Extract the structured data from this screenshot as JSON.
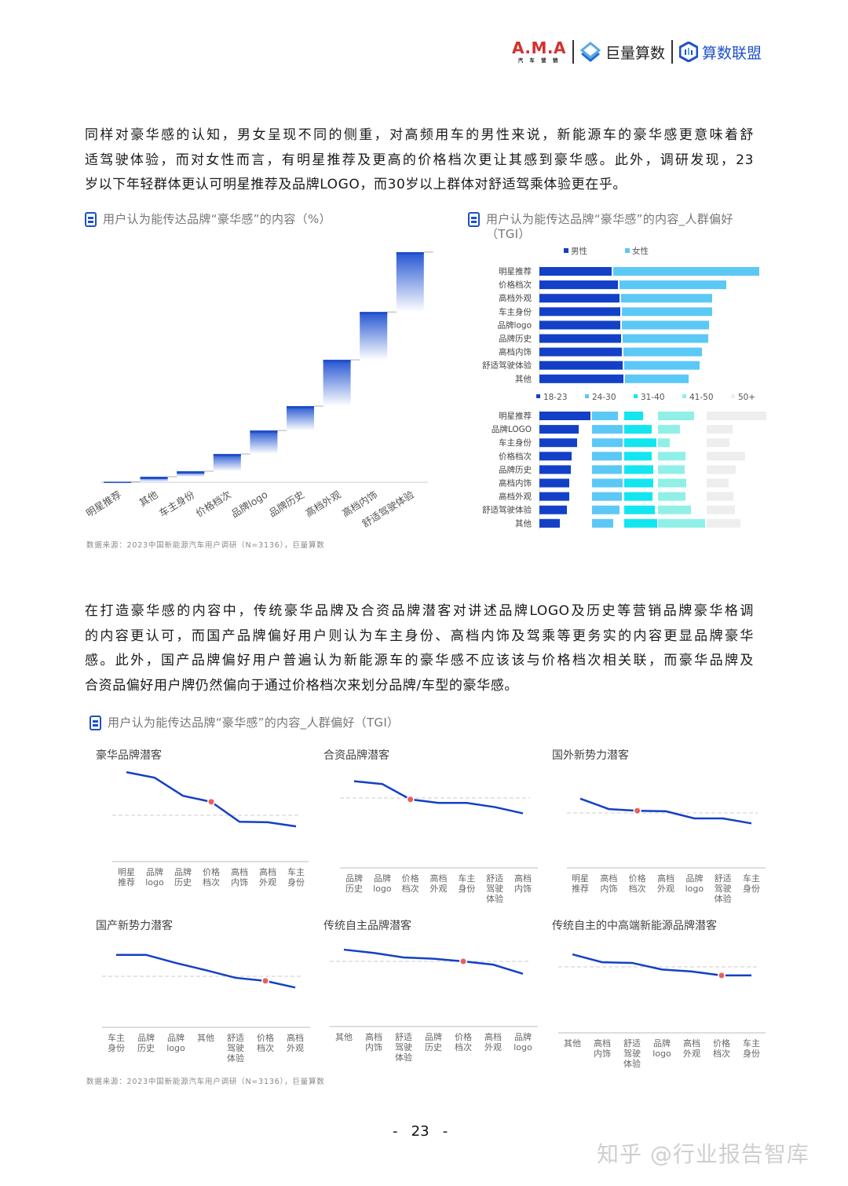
{
  "header": {
    "ama_logo": "A.M.A",
    "ama_sub": "汽 车 营 销",
    "juliang_logo": "巨量算数",
    "suanshu_logo": "算数联盟"
  },
  "paragraph1": {
    "lines": [
      "同样对豪华感的认知，男女呈现不同的侧重，对高频用车的男性来说，新能源车的豪华感更意味着舒",
      "适驾驶体验，而对女性而言，有明星推荐及更高的价格档次更让其感到豪华感。此外，调研发现，23",
      "岁以下年轻群体更认可明星推荐及品牌LOGO，而30岁以上群体对舒适驾乘体验更在乎。"
    ]
  },
  "paragraph2": {
    "lines": [
      "在打造豪华感的内容中，传统豪华品牌及合资品牌潜客对讲述品牌LOGO及历史等营销品牌豪华格调",
      "的内容更认可，而国产品牌偏好用户则认为车主身份、高档内饰及驾乘等更务实的内容更显品牌豪华",
      "感。此外，国产品牌偏好用户普遍认为新能源车的豪华感不应该该与价格档次相关联，而豪华品牌及",
      "合资品偏好用户牌仍然偏向于通过价格档次来划分品牌/车型的豪华感。"
    ]
  },
  "source1": "数据来源：2023中国新能源汽车用户调研（N=3136），巨量算数",
  "source2": "数据来源：2023中国新能源汽车用户调研（N=3136），巨量算数",
  "page_number": "-   23   -",
  "watermark": "知乎 @行业报告智库",
  "colors": {
    "dark_blue": "#1340c6",
    "light_blue": "#5cc8f5",
    "cyan": "#12e6f0",
    "mint": "#90f0e8",
    "grey": "#eeeeee",
    "marker": "#e8605a",
    "accent": "#1e50c8"
  },
  "chart_data": [
    {
      "type": "bar",
      "subtype": "waterfall",
      "title": "用户认为能传达品牌“豪华感”的内容（%）",
      "categories": [
        "明星推荐",
        "其他",
        "车主身份",
        "价格档次",
        "品牌logo",
        "品牌历史",
        "高档外观",
        "高档内饰",
        "舒适驾驶体验"
      ],
      "values": [
        0.2,
        2.2,
        2.4,
        7.5,
        10.2,
        10.6,
        20.1,
        20.8,
        26.0
      ],
      "grid": false
    },
    {
      "type": "bar",
      "orientation": "horizontal",
      "title": "用户认为能传达品牌“豪华感”的内容_人群偏好（TGI）",
      "categories": [
        "明星推荐",
        "价格档次",
        "高档外观",
        "车主身份",
        "品牌logo",
        "品牌历史",
        "高档内饰",
        "舒适驾驶体验",
        "其他"
      ],
      "series": [
        {
          "name": "男性",
          "color": "#1340c6",
          "values": [
            92,
            100,
            102,
            103,
            103,
            104,
            105,
            106,
            107
          ]
        },
        {
          "name": "女性",
          "color": "#5cc8f5",
          "values": [
            186,
            136,
            116,
            115,
            111,
            109,
            100,
            96,
            81
          ]
        }
      ],
      "legend": "top"
    },
    {
      "type": "bar",
      "orientation": "horizontal",
      "categories": [
        "明星推荐",
        "品牌LOGO",
        "车主身份",
        "价格档次",
        "品牌历史",
        "高档内饰",
        "高档外观",
        "舒适驾驶体验",
        "其他"
      ],
      "series": [
        {
          "name": "18-23",
          "color": "#1340c6",
          "values": [
            65,
            50,
            48,
            41,
            40,
            38,
            38,
            35,
            26
          ]
        },
        {
          "name": "24-30",
          "color": "#5cc8f5",
          "values": [
            33,
            39,
            39,
            38,
            38,
            39,
            38,
            35,
            27
          ]
        },
        {
          "name": "31-40",
          "color": "#12e6f0",
          "values": [
            24,
            35,
            41,
            35,
            37,
            37,
            36,
            39,
            42
          ]
        },
        {
          "name": "41-50",
          "color": "#90f0e8",
          "values": [
            46,
            28,
            15,
            35,
            34,
            36,
            35,
            42,
            60
          ]
        },
        {
          "name": "50+",
          "color": "#eeeeee",
          "values": [
            76,
            33,
            29,
            49,
            37,
            28,
            34,
            36,
            43
          ]
        }
      ],
      "legend": "top"
    },
    {
      "type": "line",
      "title": "用户认为能传达品牌“豪华感”的内容_人群偏好（TGI）",
      "reference_line": 100,
      "highlight_category": "价格档次",
      "panels": [
        {
          "name": "豪华品牌潜客",
          "categories": [
            "明星推荐",
            "品牌logo",
            "品牌历史",
            "价格档次",
            "高档内饰",
            "高档外观",
            "车主身份"
          ],
          "values": [
            193,
            181,
            142,
            129,
            86,
            85,
            76
          ]
        },
        {
          "name": "合资品牌潜客",
          "categories": [
            "品牌历史",
            "品牌logo",
            "价格档次",
            "高档外观",
            "车主身份",
            "舒适驾驶体验",
            "高档内饰"
          ],
          "values": [
            124,
            120,
            98,
            93,
            93,
            87,
            78
          ]
        },
        {
          "name": "国外新势力潜客",
          "categories": [
            "明星推荐",
            "高档内饰",
            "价格档次",
            "高档外观",
            "品牌logo",
            "舒适驾驶体验",
            "车主身份"
          ],
          "values": [
            126,
            107,
            104,
            103,
            90,
            90,
            81
          ]
        },
        {
          "name": "国产新势力潜客",
          "categories": [
            "车主身份",
            "品牌历史",
            "品牌logo",
            "其他",
            "舒适驾驶体验",
            "价格档次",
            "高档外观"
          ],
          "values": [
            142,
            142,
            126,
            112,
            97,
            91,
            78
          ]
        },
        {
          "name": "传统自主品牌潜客",
          "categories": [
            "其他",
            "高档内饰",
            "舒适驾驶体验",
            "品牌历史",
            "价格档次",
            "高档外观",
            "品牌logo"
          ],
          "values": [
            118,
            113,
            106,
            104,
            100,
            95,
            81
          ]
        },
        {
          "name": "传统自主的中高端新能源品牌潜客",
          "categories": [
            "其他",
            "高档内饰",
            "舒适驾驶体验",
            "品牌logo",
            "高档外观",
            "价格档次",
            "车主身份"
          ],
          "values": [
            119,
            107,
            106,
            96,
            93,
            87,
            87
          ]
        }
      ]
    }
  ]
}
